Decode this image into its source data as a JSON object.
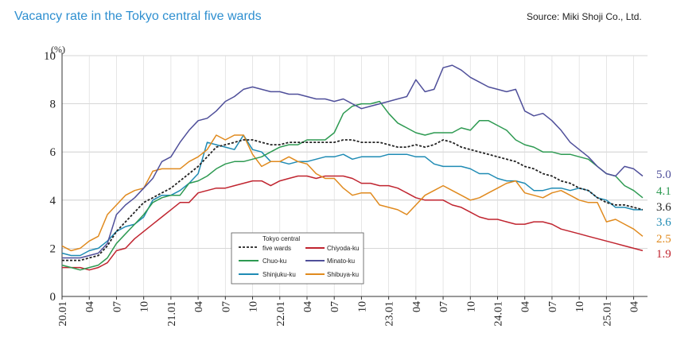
{
  "header": {
    "title": "Vacancy rate in the Tokyo central five wards",
    "source": "Source: Miki Shoji Co., Ltd."
  },
  "chart_data": {
    "type": "line",
    "title": "Vacancy rate in the Tokyo central five wards",
    "ylabel": "(%)",
    "ylim": [
      0,
      10
    ],
    "yticks": [
      "0",
      "2",
      "4",
      "6",
      "8",
      "10"
    ],
    "xlabels": [
      "20.01",
      "04",
      "07",
      "10",
      "21.01",
      "04",
      "07",
      "10",
      "22.01",
      "04",
      "07",
      "10",
      "23.01",
      "04",
      "07",
      "10",
      "24.01",
      "04",
      "07",
      "10",
      "25.01",
      "04"
    ],
    "n_points": 65,
    "series": [
      {
        "key": "chiyoda",
        "name": "Chiyoda-ku",
        "color": "#c0242f",
        "dashed": false,
        "end_label": "1.9",
        "values": [
          1.2,
          1.2,
          1.2,
          1.1,
          1.2,
          1.4,
          1.9,
          2.0,
          2.4,
          2.7,
          3.0,
          3.3,
          3.6,
          3.9,
          3.9,
          4.3,
          4.4,
          4.5,
          4.5,
          4.6,
          4.7,
          4.8,
          4.8,
          4.6,
          4.8,
          4.9,
          5.0,
          5.0,
          4.9,
          5.0,
          5.0,
          5.0,
          4.9,
          4.7,
          4.7,
          4.6,
          4.6,
          4.5,
          4.3,
          4.1,
          4.0,
          4.0,
          4.0,
          3.8,
          3.7,
          3.5,
          3.3,
          3.2,
          3.2,
          3.1,
          3.0,
          3.0,
          3.1,
          3.1,
          3.0,
          2.8,
          2.7,
          2.6,
          2.5,
          2.4,
          2.3,
          2.2,
          2.1,
          2.0,
          1.9
        ]
      },
      {
        "key": "shinjuku",
        "name": "Shinjuku-ku",
        "color": "#1f8bb4",
        "dashed": false,
        "end_label": "3.6",
        "values": [
          1.8,
          1.7,
          1.7,
          1.9,
          2.0,
          2.3,
          2.7,
          2.9,
          3.0,
          3.3,
          4.0,
          4.2,
          4.2,
          4.4,
          4.7,
          5.1,
          6.4,
          6.3,
          6.2,
          6.1,
          6.7,
          6.1,
          6.0,
          5.6,
          5.6,
          5.5,
          5.6,
          5.6,
          5.7,
          5.8,
          5.8,
          5.9,
          5.7,
          5.8,
          5.8,
          5.8,
          5.9,
          5.9,
          5.9,
          5.8,
          5.8,
          5.5,
          5.4,
          5.4,
          5.4,
          5.3,
          5.1,
          5.1,
          4.9,
          4.8,
          4.8,
          4.7,
          4.4,
          4.4,
          4.5,
          4.5,
          4.4,
          4.5,
          4.4,
          4.1,
          4.0,
          3.7,
          3.7,
          3.6,
          3.6
        ]
      },
      {
        "key": "shibuya",
        "name": "Shibuya-ku",
        "color": "#e08a1e",
        "dashed": false,
        "end_label": "2.5",
        "values": [
          2.1,
          1.9,
          2.0,
          2.3,
          2.5,
          3.4,
          3.8,
          4.2,
          4.4,
          4.5,
          5.2,
          5.3,
          5.3,
          5.3,
          5.6,
          5.8,
          6.1,
          6.7,
          6.5,
          6.7,
          6.7,
          5.9,
          5.4,
          5.6,
          5.6,
          5.8,
          5.6,
          5.5,
          5.1,
          4.9,
          4.9,
          4.5,
          4.2,
          4.3,
          4.3,
          3.8,
          3.7,
          3.6,
          3.4,
          3.8,
          4.2,
          4.4,
          4.6,
          4.4,
          4.2,
          4.0,
          4.1,
          4.3,
          4.5,
          4.7,
          4.8,
          4.3,
          4.2,
          4.1,
          4.3,
          4.4,
          4.2,
          4.0,
          3.9,
          3.9,
          3.1,
          3.2,
          3.0,
          2.8,
          2.5
        ]
      },
      {
        "key": "chuo",
        "name": "Chuo-ku",
        "color": "#2e9a52",
        "dashed": false,
        "end_label": "4.1",
        "values": [
          1.3,
          1.2,
          1.1,
          1.2,
          1.3,
          1.6,
          2.2,
          2.6,
          3.0,
          3.4,
          3.9,
          4.1,
          4.2,
          4.2,
          4.7,
          4.8,
          5.0,
          5.3,
          5.5,
          5.6,
          5.6,
          5.7,
          5.8,
          6.0,
          6.2,
          6.3,
          6.3,
          6.5,
          6.5,
          6.5,
          6.8,
          7.6,
          7.9,
          8.0,
          8.0,
          8.1,
          7.6,
          7.2,
          7.0,
          6.8,
          6.7,
          6.8,
          6.8,
          6.8,
          7.0,
          6.9,
          7.3,
          7.3,
          7.1,
          6.9,
          6.5,
          6.3,
          6.2,
          6.0,
          6.0,
          5.9,
          5.9,
          5.8,
          5.7,
          5.4,
          5.1,
          5.0,
          4.6,
          4.4,
          4.1
        ]
      },
      {
        "key": "minato",
        "name": "Minato-ku",
        "color": "#4f4f9a",
        "dashed": false,
        "end_label": "5.0",
        "values": [
          1.6,
          1.6,
          1.6,
          1.7,
          1.8,
          2.2,
          3.4,
          3.8,
          4.1,
          4.5,
          4.9,
          5.6,
          5.8,
          6.4,
          6.9,
          7.3,
          7.4,
          7.7,
          8.1,
          8.3,
          8.6,
          8.7,
          8.6,
          8.5,
          8.5,
          8.4,
          8.4,
          8.3,
          8.2,
          8.2,
          8.1,
          8.2,
          8.0,
          7.8,
          7.9,
          8.0,
          8.1,
          8.2,
          8.3,
          9.0,
          8.5,
          8.6,
          9.5,
          9.6,
          9.4,
          9.1,
          8.9,
          8.7,
          8.6,
          8.5,
          8.6,
          7.7,
          7.5,
          7.6,
          7.3,
          6.9,
          6.4,
          6.1,
          5.8,
          5.4,
          5.1,
          5.0,
          5.4,
          5.3,
          5.0
        ]
      },
      {
        "key": "five",
        "name": "Tokyo central five wards",
        "name_line1": "Tokyo central",
        "name_line2": "five wards",
        "color": "#222222",
        "dashed": true,
        "end_label": "3.6",
        "values": [
          1.5,
          1.5,
          1.5,
          1.6,
          1.7,
          2.1,
          2.7,
          3.1,
          3.5,
          3.9,
          4.1,
          4.3,
          4.5,
          4.8,
          5.1,
          5.4,
          5.8,
          6.2,
          6.3,
          6.4,
          6.5,
          6.5,
          6.4,
          6.3,
          6.3,
          6.4,
          6.4,
          6.4,
          6.4,
          6.4,
          6.4,
          6.5,
          6.5,
          6.4,
          6.4,
          6.4,
          6.3,
          6.2,
          6.2,
          6.3,
          6.2,
          6.3,
          6.5,
          6.4,
          6.2,
          6.1,
          6.0,
          5.9,
          5.8,
          5.7,
          5.6,
          5.4,
          5.3,
          5.1,
          5.0,
          4.8,
          4.7,
          4.5,
          4.4,
          4.1,
          3.9,
          3.8,
          3.8,
          3.7,
          3.6
        ]
      }
    ],
    "legend_position": "bottom-center"
  }
}
